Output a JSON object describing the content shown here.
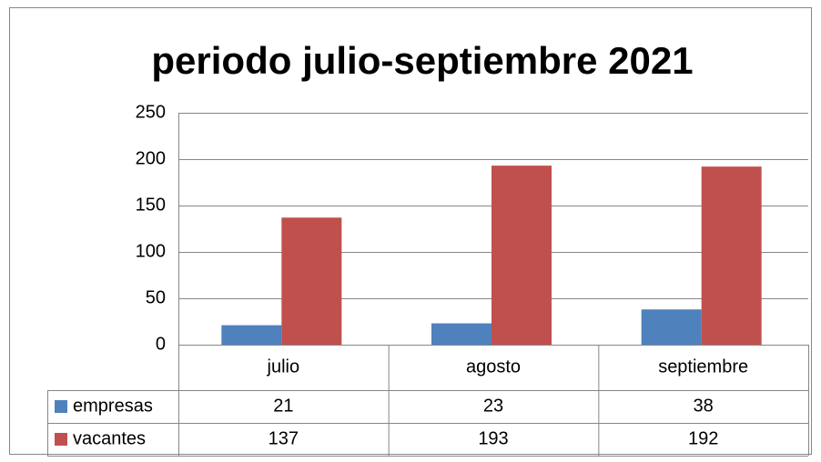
{
  "chart_data": {
    "type": "bar",
    "title": "periodo julio-septiembre 2021",
    "categories": [
      "julio",
      "agosto",
      "septiembre"
    ],
    "series": [
      {
        "name": "empresas",
        "color": "#4f81bd",
        "values": [
          21,
          23,
          38
        ]
      },
      {
        "name": "vacantes",
        "color": "#c0504d",
        "values": [
          137,
          193,
          192
        ]
      }
    ],
    "ylim": [
      0,
      250
    ],
    "yticks": [
      0,
      50,
      100,
      150,
      200,
      250
    ],
    "grid": true,
    "data_table": true
  }
}
